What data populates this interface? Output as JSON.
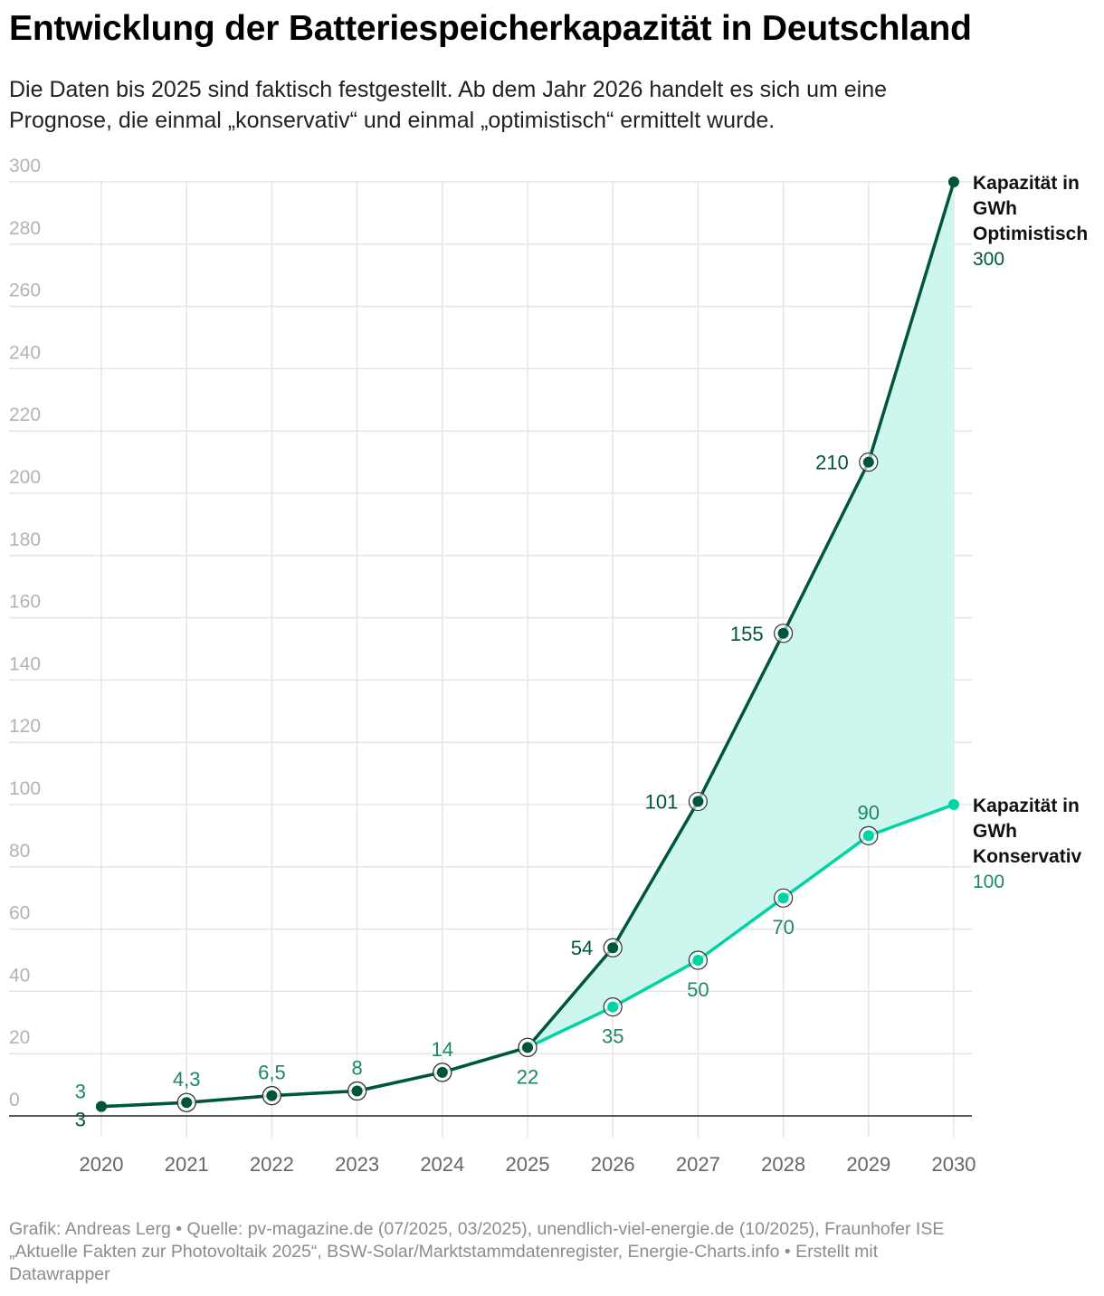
{
  "title": "Entwicklung der Batteriespeicherkapazität in Deutschland",
  "subtitle": {
    "line1": "Die Daten bis 2025 sind faktisch festgestellt. Ab dem Jahr 2026 handelt es sich um eine",
    "line2": "Prognose, die einmal „konservativ“ und einmal „optimistisch“ ermittelt wurde."
  },
  "colors": {
    "optimistic": "#00553a",
    "conservative": "#00d4a3",
    "area": "#cdf6ef",
    "grid": "#e5e5e5",
    "label_green": "#1a8a5e"
  },
  "chart_data": {
    "type": "line",
    "x": [
      2020,
      2021,
      2022,
      2023,
      2024,
      2025,
      2026,
      2027,
      2028,
      2029,
      2030
    ],
    "ylim": [
      0,
      300
    ],
    "yticks": [
      0,
      20,
      40,
      60,
      80,
      100,
      120,
      140,
      160,
      180,
      200,
      220,
      240,
      260,
      280,
      300
    ],
    "grid": true,
    "area_between_series": true,
    "series": [
      {
        "name": "Kapazität in GWh Optimistisch",
        "name_lines": [
          "Kapazität in",
          "GWh",
          "Optimistisch"
        ],
        "end_value_label": "300",
        "values": [
          3,
          4.3,
          6.5,
          8,
          14,
          22,
          54,
          101,
          155,
          210,
          300
        ],
        "labels": [
          "3",
          null,
          null,
          null,
          null,
          null,
          "54",
          "101",
          "155",
          "210",
          null
        ]
      },
      {
        "name": "Kapazität in GWh Konservativ",
        "name_lines": [
          "Kapazität in",
          "GWh",
          "Konservativ"
        ],
        "end_value_label": "100",
        "values": [
          3,
          4.3,
          6.5,
          8,
          14,
          22,
          35,
          50,
          70,
          90,
          100
        ],
        "labels": [
          "3",
          "4,3",
          "6,5",
          "8",
          "14",
          "22",
          "35",
          "50",
          "70",
          "90",
          null
        ]
      }
    ]
  },
  "footer": {
    "line1": "Grafik: Andreas Lerg • Quelle: pv-magazine.de (07/2025, 03/2025), unendlich-viel-energie.de (10/2025), Fraunhofer ISE",
    "line2": "„Aktuelle Fakten zur Photovoltaik 2025“, BSW-Solar/Marktstammdatenregister, Energie-Charts.info • Erstellt mit",
    "line3": "Datawrapper"
  }
}
